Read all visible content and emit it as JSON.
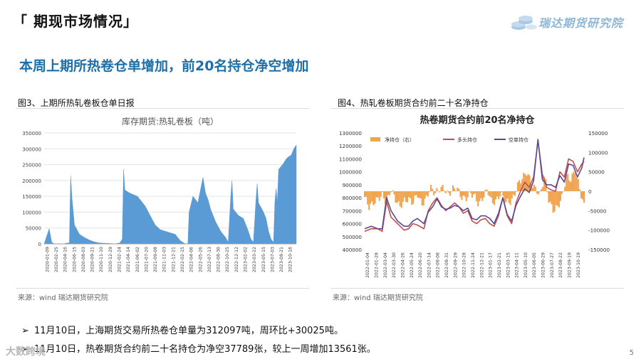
{
  "header": {
    "title": "「 期现市场情况」",
    "brand": "瑞达期货研究院"
  },
  "subtitle": "本周上期所热卷仓单增加，前20名持仓净空增加",
  "left": {
    "caption": "图3、上期所热轧卷板仓单日报",
    "source": "来源：wind   瑞达期货研究院"
  },
  "right": {
    "caption": "图4、热轧卷板期货合约前二十名净持仓",
    "source": "来源：wind   瑞达期货研究院"
  },
  "bullets": [
    "11月10日，上海期货交易所热卷仓单量为312097吨，周环比+30025吨。",
    "11月10日，热卷期货合约前二十名持仓为净空37789张，较上一周增加13561张。"
  ],
  "page_number": "5",
  "watermark": "大数跨境",
  "colors": {
    "bar_fill": "#5b9bd5",
    "net": "#f0a450",
    "long": "#c0504d",
    "short": "#5c4a8f",
    "accent": "#1d6fa8"
  },
  "chart_data": [
    {
      "type": "area",
      "title": "库存期货:热轧卷板（吨）",
      "ylim": [
        0,
        350000
      ],
      "yticks": [
        "0",
        "50000",
        "100000",
        "150000",
        "200000",
        "250000",
        "300000",
        "350000"
      ],
      "xticks": [
        "2020-01-09",
        "2020-02-25",
        "2020-04-16",
        "2020-06-15",
        "2020-08-03",
        "2020-09-21",
        "2020-11-10",
        "2020-12-29",
        "2021-02-24",
        "2021-04-14",
        "2021-06-02",
        "2021-07-20",
        "2021-09-08",
        "2021-11-03",
        "2021-12-21",
        "2022-02-15",
        "2022-04-06",
        "2022-05-26",
        "2022-07-13",
        "2022-08-30",
        "2022-10-25",
        "2022-12-12",
        "2023-02-02",
        "2023-03-22",
        "2023-05-15",
        "2023-07-03",
        "2023-08-21",
        "2023-10-16"
      ],
      "points": [
        [
          0,
          0
        ],
        [
          0.02,
          48000
        ],
        [
          0.03,
          5000
        ],
        [
          0.04,
          0
        ],
        [
          0.08,
          0
        ],
        [
          0.085,
          2000
        ],
        [
          0.1,
          3000
        ],
        [
          0.105,
          215000
        ],
        [
          0.11,
          150000
        ],
        [
          0.12,
          60000
        ],
        [
          0.14,
          30000
        ],
        [
          0.16,
          20000
        ],
        [
          0.18,
          12000
        ],
        [
          0.2,
          6000
        ],
        [
          0.22,
          3000
        ],
        [
          0.24,
          2000
        ],
        [
          0.27,
          1000
        ],
        [
          0.28,
          0
        ],
        [
          0.3,
          3000
        ],
        [
          0.31,
          15000
        ],
        [
          0.315,
          235000
        ],
        [
          0.32,
          170000
        ],
        [
          0.34,
          160000
        ],
        [
          0.37,
          150000
        ],
        [
          0.4,
          120000
        ],
        [
          0.42,
          90000
        ],
        [
          0.44,
          60000
        ],
        [
          0.46,
          45000
        ],
        [
          0.48,
          40000
        ],
        [
          0.5,
          35000
        ],
        [
          0.52,
          30000
        ],
        [
          0.53,
          20000
        ],
        [
          0.54,
          10000
        ],
        [
          0.55,
          5000
        ],
        [
          0.56,
          0
        ],
        [
          0.57,
          0
        ],
        [
          0.575,
          100000
        ],
        [
          0.59,
          150000
        ],
        [
          0.6,
          140000
        ],
        [
          0.61,
          130000
        ],
        [
          0.63,
          210000
        ],
        [
          0.64,
          160000
        ],
        [
          0.65,
          140000
        ],
        [
          0.66,
          110000
        ],
        [
          0.68,
          70000
        ],
        [
          0.7,
          40000
        ],
        [
          0.72,
          20000
        ],
        [
          0.73,
          5000
        ],
        [
          0.74,
          150000
        ],
        [
          0.745,
          200000
        ],
        [
          0.75,
          110000
        ],
        [
          0.77,
          90000
        ],
        [
          0.79,
          80000
        ],
        [
          0.81,
          40000
        ],
        [
          0.82,
          15000
        ],
        [
          0.83,
          5000
        ],
        [
          0.84,
          140000
        ],
        [
          0.845,
          190000
        ],
        [
          0.85,
          130000
        ],
        [
          0.87,
          100000
        ],
        [
          0.88,
          80000
        ],
        [
          0.89,
          40000
        ],
        [
          0.9,
          15000
        ],
        [
          0.91,
          5000
        ],
        [
          0.915,
          130000
        ],
        [
          0.92,
          175000
        ],
        [
          0.925,
          130000
        ],
        [
          0.93,
          235000
        ],
        [
          0.94,
          245000
        ],
        [
          0.95,
          255000
        ],
        [
          0.96,
          268000
        ],
        [
          0.97,
          275000
        ],
        [
          0.98,
          280000
        ],
        [
          0.99,
          300000
        ],
        [
          1.0,
          312097
        ]
      ]
    },
    {
      "type": "line",
      "title": "热卷期货合约前20名净持仓",
      "left_axis": {
        "ylim": [
          400000,
          1300000
        ],
        "ticks": [
          "400000",
          "500000",
          "600000",
          "700000",
          "800000",
          "900000",
          "1000000",
          "1100000",
          "1200000",
          "1300000"
        ]
      },
      "right_axis": {
        "ylim": [
          -150000,
          150000
        ],
        "ticks": [
          "-150000",
          "-100000",
          "-50000",
          "0",
          "50000",
          "100000",
          "150000"
        ]
      },
      "xticks": [
        "2022-01-04",
        "2022-01-28",
        "2022-03-04",
        "2022-03-30",
        "2022-04-26",
        "2022-05-24",
        "2022-06-20",
        "2022-07-14",
        "2022-08-08",
        "2022-08-31",
        "2022-09-29",
        "2022-10-28",
        "2022-11-24",
        "2022-12-21",
        "2023-01-17",
        "2023-02-21",
        "2023-03-15",
        "2023-04-11",
        "2023-05-10",
        "2023-06-05",
        "2023-06-29",
        "2023-07-27",
        "2023-08-22",
        "2023-09-19",
        "2023-10-19"
      ],
      "legend": [
        "净持仓（右）",
        "多头持仓",
        "空单持仓"
      ],
      "net": [
        [
          0,
          -15000
        ],
        [
          0.02,
          -40000
        ],
        [
          0.04,
          -30000
        ],
        [
          0.06,
          -20000
        ],
        [
          0.08,
          -10000
        ],
        [
          0.1,
          -30000
        ],
        [
          0.12,
          5000
        ],
        [
          0.14,
          -20000
        ],
        [
          0.16,
          -40000
        ],
        [
          0.18,
          -25000
        ],
        [
          0.2,
          -20000
        ],
        [
          0.22,
          -30000
        ],
        [
          0.24,
          -5000
        ],
        [
          0.26,
          -35000
        ],
        [
          0.28,
          -20000
        ],
        [
          0.3,
          10000
        ],
        [
          0.32,
          -5000
        ],
        [
          0.34,
          5000
        ],
        [
          0.36,
          10000
        ],
        [
          0.38,
          -10000
        ],
        [
          0.4,
          5000
        ],
        [
          0.42,
          10000
        ],
        [
          0.44,
          -15000
        ],
        [
          0.46,
          -20000
        ],
        [
          0.48,
          -5000
        ],
        [
          0.5,
          -10000
        ],
        [
          0.52,
          -35000
        ],
        [
          0.54,
          -15000
        ],
        [
          0.56,
          5000
        ],
        [
          0.58,
          -30000
        ],
        [
          0.6,
          -25000
        ],
        [
          0.62,
          -5000
        ],
        [
          0.64,
          -25000
        ],
        [
          0.66,
          -30000
        ],
        [
          0.68,
          -15000
        ],
        [
          0.7,
          20000
        ],
        [
          0.72,
          35000
        ],
        [
          0.74,
          50000
        ],
        [
          0.76,
          20000
        ],
        [
          0.78,
          5000
        ],
        [
          0.8,
          -10000
        ],
        [
          0.82,
          40000
        ],
        [
          0.84,
          -25000
        ],
        [
          0.86,
          -50000
        ],
        [
          0.88,
          -40000
        ],
        [
          0.9,
          -15000
        ],
        [
          0.92,
          40000
        ],
        [
          0.94,
          30000
        ],
        [
          0.96,
          55000
        ],
        [
          0.98,
          5000
        ],
        [
          1.0,
          -37789
        ]
      ],
      "long": [
        [
          0,
          540000
        ],
        [
          0.03,
          560000
        ],
        [
          0.06,
          560000
        ],
        [
          0.08,
          540000
        ],
        [
          0.1,
          770000
        ],
        [
          0.12,
          650000
        ],
        [
          0.15,
          600000
        ],
        [
          0.18,
          550000
        ],
        [
          0.2,
          560000
        ],
        [
          0.22,
          600000
        ],
        [
          0.24,
          590000
        ],
        [
          0.27,
          560000
        ],
        [
          0.29,
          700000
        ],
        [
          0.31,
          760000
        ],
        [
          0.33,
          800000
        ],
        [
          0.35,
          740000
        ],
        [
          0.37,
          700000
        ],
        [
          0.39,
          730000
        ],
        [
          0.41,
          760000
        ],
        [
          0.43,
          730000
        ],
        [
          0.45,
          680000
        ],
        [
          0.47,
          700000
        ],
        [
          0.49,
          620000
        ],
        [
          0.51,
          600000
        ],
        [
          0.53,
          630000
        ],
        [
          0.55,
          640000
        ],
        [
          0.57,
          600000
        ],
        [
          0.59,
          580000
        ],
        [
          0.61,
          660000
        ],
        [
          0.63,
          800000
        ],
        [
          0.65,
          660000
        ],
        [
          0.67,
          600000
        ],
        [
          0.69,
          760000
        ],
        [
          0.71,
          850000
        ],
        [
          0.73,
          920000
        ],
        [
          0.75,
          880000
        ],
        [
          0.77,
          960000
        ],
        [
          0.79,
          1240000
        ],
        [
          0.81,
          980000
        ],
        [
          0.83,
          880000
        ],
        [
          0.85,
          860000
        ],
        [
          0.87,
          850000
        ],
        [
          0.89,
          1000000
        ],
        [
          0.91,
          960000
        ],
        [
          0.93,
          1100000
        ],
        [
          0.95,
          1080000
        ],
        [
          0.97,
          1000000
        ],
        [
          0.99,
          1060000
        ],
        [
          1.0,
          1080000
        ]
      ],
      "short": [
        [
          0,
          560000
        ],
        [
          0.03,
          580000
        ],
        [
          0.06,
          560000
        ],
        [
          0.08,
          560000
        ],
        [
          0.1,
          800000
        ],
        [
          0.12,
          700000
        ],
        [
          0.15,
          620000
        ],
        [
          0.18,
          580000
        ],
        [
          0.2,
          580000
        ],
        [
          0.22,
          620000
        ],
        [
          0.24,
          640000
        ],
        [
          0.27,
          600000
        ],
        [
          0.29,
          690000
        ],
        [
          0.31,
          730000
        ],
        [
          0.33,
          790000
        ],
        [
          0.35,
          730000
        ],
        [
          0.37,
          710000
        ],
        [
          0.39,
          720000
        ],
        [
          0.41,
          740000
        ],
        [
          0.43,
          730000
        ],
        [
          0.45,
          700000
        ],
        [
          0.47,
          720000
        ],
        [
          0.49,
          640000
        ],
        [
          0.51,
          630000
        ],
        [
          0.53,
          660000
        ],
        [
          0.55,
          660000
        ],
        [
          0.57,
          640000
        ],
        [
          0.59,
          600000
        ],
        [
          0.61,
          680000
        ],
        [
          0.63,
          800000
        ],
        [
          0.65,
          670000
        ],
        [
          0.67,
          620000
        ],
        [
          0.69,
          740000
        ],
        [
          0.71,
          810000
        ],
        [
          0.73,
          870000
        ],
        [
          0.75,
          840000
        ],
        [
          0.77,
          930000
        ],
        [
          0.79,
          1250000
        ],
        [
          0.81,
          940000
        ],
        [
          0.83,
          900000
        ],
        [
          0.85,
          900000
        ],
        [
          0.87,
          880000
        ],
        [
          0.89,
          970000
        ],
        [
          0.91,
          920000
        ],
        [
          0.93,
          1060000
        ],
        [
          0.95,
          1050000
        ],
        [
          0.97,
          960000
        ],
        [
          0.99,
          1030000
        ],
        [
          1.0,
          1110000
        ]
      ]
    }
  ]
}
